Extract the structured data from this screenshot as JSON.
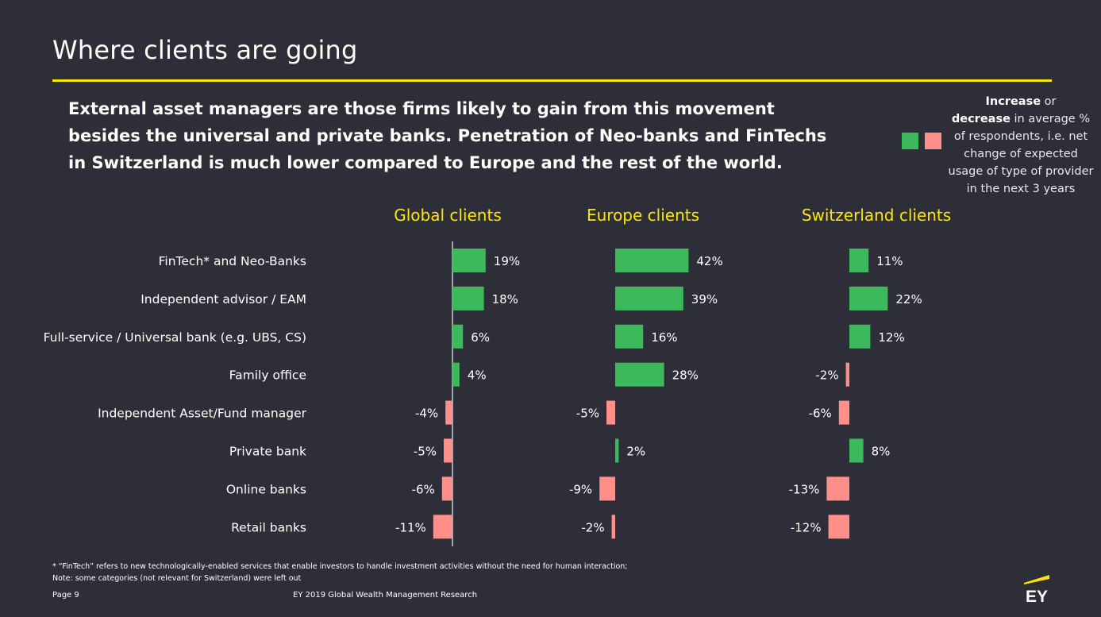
{
  "page": {
    "title": "Where clients are going",
    "subtitle": "External asset managers are those firms likely to gain from this movement besides the universal and private banks. Penetration of Neo-banks and FinTechs in Switzerland is much lower compared to Europe and the rest of the world.",
    "footnote_line1": "* “FinTech” refers to new technologically-enabled services that enable investors to handle investment activities without the need for human interaction;",
    "footnote_line2": "Note: some categories (not relevant for Switzerland) were left out",
    "page_number": "Page 9",
    "source": "EY 2019 Global Wealth Management Research",
    "logo_text": "EY"
  },
  "legend": {
    "increase_word": "Increase",
    "or_word": " or",
    "decrease_word": "decrease",
    "rest": " in average % of respondents, i.e. net change of expected usage of type of provider in the next 3 years"
  },
  "colors": {
    "positive": "#3cb95c",
    "negative": "#ff8f88",
    "accent": "#ffe600",
    "background": "#2e2e38"
  },
  "chart_data": {
    "type": "bar",
    "orientation": "horizontal",
    "categories": [
      "FinTech* and Neo-Banks",
      "Independent advisor / EAM",
      "Full-service / Universal bank (e.g. UBS, CS)",
      "Family office",
      "Independent Asset/Fund manager",
      "Private bank",
      "Online banks",
      "Retail banks"
    ],
    "unit": "%",
    "series": [
      {
        "name": "Global clients",
        "values": [
          19,
          18,
          6,
          4,
          -4,
          -5,
          -6,
          -11
        ]
      },
      {
        "name": "Europe clients",
        "values": [
          42,
          39,
          16,
          28,
          -5,
          2,
          -9,
          -2
        ]
      },
      {
        "name": "Switzerland clients",
        "values": [
          11,
          22,
          12,
          -2,
          -6,
          8,
          -13,
          -12
        ]
      }
    ]
  }
}
